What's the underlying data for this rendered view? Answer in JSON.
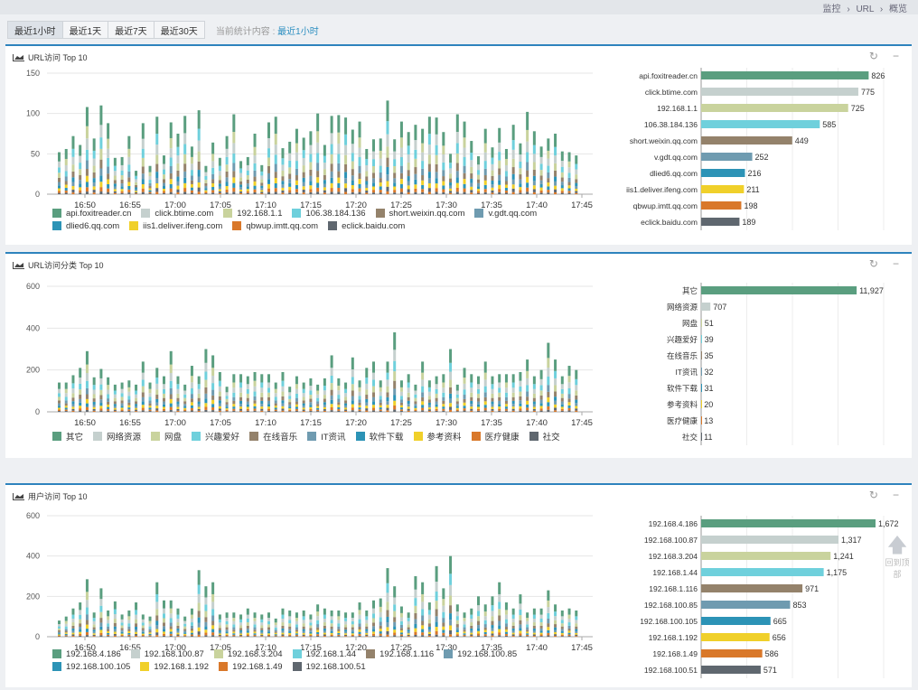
{
  "breadcrumb": [
    "监控",
    "URL",
    "概览"
  ],
  "sep": "›",
  "toolbar": {
    "buttons": [
      {
        "label": "最近1小时",
        "active": true
      },
      {
        "label": "最近1天",
        "active": false
      },
      {
        "label": "最近7天",
        "active": false
      },
      {
        "label": "最近30天",
        "active": false
      }
    ],
    "stat_label": "当前统计内容 :",
    "stat_value": "最近1小时"
  },
  "back_to_top": "回到顶部",
  "colors": [
    "#5a9e7f",
    "#c5d0ce",
    "#c9d39d",
    "#6fd0dc",
    "#94826b",
    "#6f9bb0",
    "#2c93b6",
    "#f0d02a",
    "#d9782a",
    "#5f676f"
  ],
  "panels": [
    {
      "title": "URL访问 Top 10",
      "chart_data": [
        {
          "type": "bar",
          "stacked": true,
          "ylim": [
            0,
            150
          ],
          "yticks": [
            0,
            50,
            100,
            150
          ],
          "xticks": [
            "16:50",
            "16:55",
            "17:00",
            "17:05",
            "17:10",
            "17:15",
            "17:20",
            "17:25",
            "17:30",
            "17:35",
            "17:40",
            "17:45"
          ],
          "series_names": [
            "api.foxitreader.cn",
            "click.btime.com",
            "192.168.1.1",
            "106.38.184.136",
            "short.weixin.qq.com",
            "v.gdt.qq.com",
            "dlied6.qq.com",
            "iis1.deliver.ifeng.com",
            "qbwup.imtt.qq.com",
            "eclick.baidu.com"
          ],
          "totals": [
            52,
            56,
            72,
            61,
            108,
            69,
            110,
            88,
            45,
            46,
            72,
            29,
            88,
            35,
            96,
            48,
            89,
            75,
            97,
            59,
            104,
            35,
            64,
            45,
            72,
            99,
            41,
            46,
            75,
            36,
            89,
            96,
            57,
            65,
            81,
            70,
            78,
            100,
            61,
            97,
            98,
            95,
            80,
            90,
            56,
            68,
            69,
            116,
            68,
            90,
            77,
            86,
            81,
            96,
            95,
            77,
            50,
            99,
            90,
            66,
            47,
            81,
            58,
            82,
            56,
            86,
            63,
            102,
            78,
            59,
            69,
            75,
            53,
            52,
            48
          ]
        },
        {
          "type": "bar",
          "orientation": "horizontal",
          "categories": [
            "api.foxitreader.cn",
            "click.btime.com",
            "192.168.1.1",
            "106.38.184.136",
            "short.weixin.qq.com",
            "v.gdt.qq.com",
            "dlied6.qq.com",
            "iis1.deliver.ifeng.com",
            "qbwup.imtt.qq.com",
            "eclick.baidu.com"
          ],
          "values": [
            826,
            775,
            725,
            585,
            449,
            252,
            216,
            211,
            198,
            189
          ],
          "labels": [
            "826",
            "775",
            "725",
            "585",
            "449",
            "252",
            "216",
            "211",
            "198",
            "189"
          ],
          "xlim": [
            0,
            900
          ]
        }
      ]
    },
    {
      "title": "URL访问分类 Top 10",
      "chart_data": [
        {
          "type": "bar",
          "stacked": true,
          "ylim": [
            0,
            600
          ],
          "yticks": [
            0,
            200,
            400,
            600
          ],
          "xticks": [
            "16:50",
            "16:55",
            "17:00",
            "17:05",
            "17:10",
            "17:15",
            "17:20",
            "17:25",
            "17:30",
            "17:35",
            "17:40",
            "17:45"
          ],
          "series_names": [
            "其它",
            "网络资源",
            "网盘",
            "兴趣爱好",
            "在线音乐",
            "IT资讯",
            "软件下载",
            "参考资料",
            "医疗健康",
            "社交"
          ],
          "totals": [
            140,
            140,
            175,
            210,
            290,
            165,
            205,
            165,
            130,
            140,
            150,
            130,
            240,
            140,
            210,
            170,
            290,
            170,
            130,
            220,
            170,
            300,
            270,
            190,
            120,
            180,
            180,
            170,
            190,
            180,
            180,
            140,
            190,
            120,
            170,
            140,
            160,
            130,
            160,
            270,
            160,
            140,
            260,
            150,
            210,
            240,
            150,
            240,
            380,
            150,
            180,
            130,
            240,
            150,
            170,
            180,
            300,
            130,
            210,
            180,
            170,
            240,
            170,
            180,
            180,
            180,
            190,
            250,
            170,
            200,
            330,
            250,
            170,
            220,
            200
          ]
        },
        {
          "type": "bar",
          "orientation": "horizontal",
          "categories": [
            "其它",
            "网络资源",
            "网盘",
            "兴趣爱好",
            "在线音乐",
            "IT资讯",
            "软件下载",
            "参考资料",
            "医疗健康",
            "社交"
          ],
          "values": [
            11927,
            707,
            51,
            39,
            35,
            32,
            31,
            20,
            13,
            11
          ],
          "labels": [
            "11,927",
            "707",
            "51",
            "39",
            "35",
            "32",
            "31",
            "20",
            "13",
            "11"
          ],
          "xlim": [
            0,
            14000
          ]
        }
      ]
    },
    {
      "title": "用户访问 Top 10",
      "chart_data": [
        {
          "type": "bar",
          "stacked": true,
          "ylim": [
            0,
            600
          ],
          "yticks": [
            0,
            200,
            400,
            600
          ],
          "xticks": [
            "16:50",
            "16:55",
            "17:00",
            "17:05",
            "17:10",
            "17:15",
            "17:20",
            "17:25",
            "17:30",
            "17:35",
            "17:40",
            "17:45"
          ],
          "series_names": [
            "192.168.4.186",
            "192.168.100.87",
            "192.168.3.204",
            "192.168.1.44",
            "192.168.1.116",
            "192.168.100.85",
            "192.168.100.105",
            "192.168.1.192",
            "192.168.1.49",
            "192.168.100.51"
          ],
          "totals": [
            80,
            100,
            140,
            170,
            285,
            120,
            240,
            130,
            175,
            110,
            130,
            170,
            110,
            100,
            270,
            180,
            180,
            140,
            100,
            140,
            330,
            250,
            270,
            110,
            120,
            120,
            110,
            140,
            120,
            110,
            120,
            90,
            140,
            130,
            120,
            130,
            110,
            160,
            140,
            130,
            130,
            120,
            120,
            170,
            130,
            180,
            190,
            340,
            250,
            150,
            120,
            300,
            270,
            170,
            350,
            240,
            400,
            160,
            120,
            140,
            200,
            160,
            200,
            270,
            170,
            140,
            210,
            120,
            140,
            140,
            230,
            160,
            130,
            140,
            130
          ]
        },
        {
          "type": "bar",
          "orientation": "horizontal",
          "categories": [
            "192.168.4.186",
            "192.168.100.87",
            "192.168.3.204",
            "192.168.1.44",
            "192.168.1.116",
            "192.168.100.85",
            "192.168.100.105",
            "192.168.1.192",
            "192.168.1.49",
            "192.168.100.51"
          ],
          "values": [
            1672,
            1317,
            1241,
            1175,
            971,
            853,
            665,
            656,
            586,
            571
          ],
          "labels": [
            "1,672",
            "1,317",
            "1,241",
            "1,175",
            "971",
            "853",
            "665",
            "656",
            "586",
            "571"
          ],
          "xlim": [
            0,
            1750
          ]
        }
      ]
    }
  ]
}
